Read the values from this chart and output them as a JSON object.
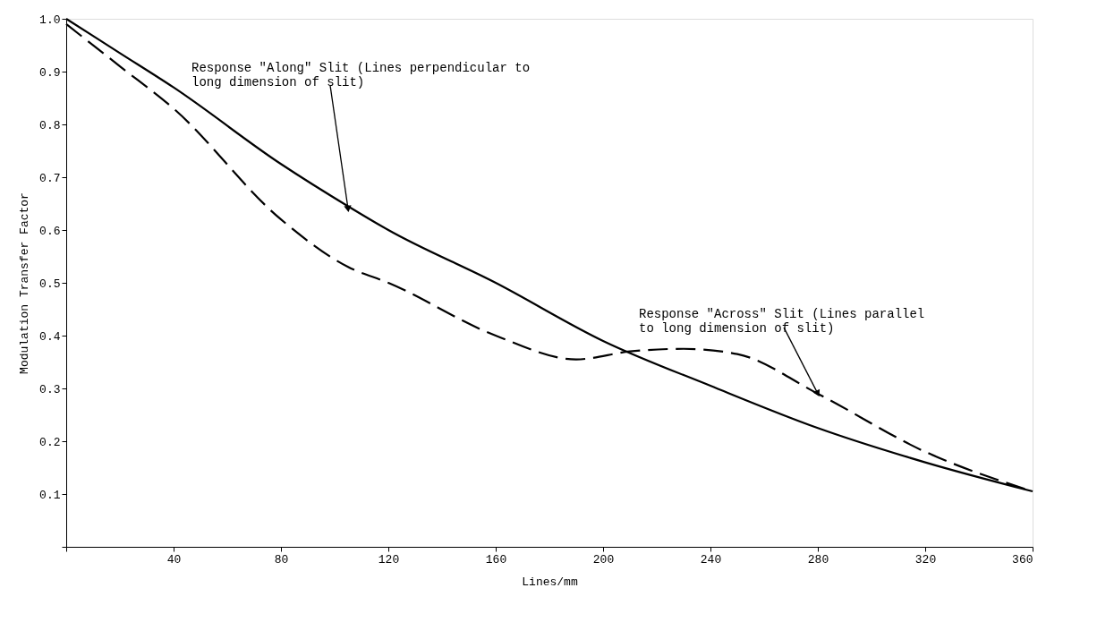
{
  "chart_data": {
    "type": "line",
    "xlabel": "Lines/mm",
    "ylabel": "Modulation Transfer Factor",
    "xlim": [
      0,
      360
    ],
    "xticks": [
      {
        "value": 0,
        "label": null
      },
      40,
      80,
      120,
      160,
      200,
      240,
      280,
      320,
      360
    ],
    "ylim": [
      0,
      1.0
    ],
    "yticks": [
      {
        "value": 0,
        "label": null
      },
      0.1,
      0.2,
      0.3,
      0.4,
      0.5,
      0.6,
      0.7,
      0.8,
      0.9,
      {
        "value": 1.0,
        "label": "1.0"
      }
    ],
    "grid": false,
    "series": [
      {
        "color": "#000000",
        "line_style": "solid",
        "x": [
          0,
          20,
          40,
          80,
          105,
          120,
          160,
          200,
          240,
          280,
          320,
          360
        ],
        "values": [
          1.0,
          0.935,
          0.87,
          0.725,
          0.645,
          0.6,
          0.5,
          0.39,
          0.305,
          0.225,
          0.16,
          0.105
        ]
      },
      {
        "color": "#000000",
        "line_style": "dashed",
        "x": [
          0,
          20,
          40,
          80,
          105,
          120,
          160,
          190,
          210,
          230,
          250,
          280,
          320,
          360
        ],
        "values": [
          0.99,
          0.91,
          0.83,
          0.62,
          0.53,
          0.5,
          0.4,
          0.355,
          0.37,
          0.375,
          0.365,
          0.29,
          0.18,
          0.105
        ]
      }
    ],
    "annotations": [
      {
        "text": "Response \"Along\" Slit (Lines perpendicular to\n long dimension of slit)",
        "x": 105,
        "y": 0.64
      },
      {
        "text": "Response \"Across\" Slit (Lines parallel\n to long dimension of slit)",
        "x": 280,
        "y": 0.29
      }
    ]
  }
}
